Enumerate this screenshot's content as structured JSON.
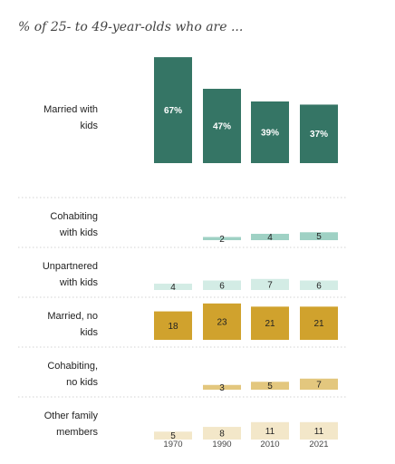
{
  "chart_data": {
    "type": "bar",
    "title": "% of 25- to 49-year-olds who are ...",
    "categories": [
      "1970",
      "1990",
      "2010",
      "2021"
    ],
    "series": [
      {
        "name": [
          "Married with",
          "kids"
        ],
        "values": [
          67,
          47,
          39,
          37
        ],
        "labels": [
          "67%",
          "47%",
          "39%",
          "37%"
        ],
        "color": "#357565",
        "text_color": "#ffffff"
      },
      {
        "name": [
          "Cohabiting",
          "with kids"
        ],
        "values": [
          null,
          2,
          4,
          5
        ],
        "labels": [
          "",
          "2",
          "4",
          "5"
        ],
        "color": "#9fd1c4",
        "text_color": "#222222"
      },
      {
        "name": [
          "Unpartnered",
          "with kids"
        ],
        "values": [
          4,
          6,
          7,
          6
        ],
        "labels": [
          "4",
          "6",
          "7",
          "6"
        ],
        "color": "#d3ece5",
        "text_color": "#222222"
      },
      {
        "name": [
          "Married, no",
          "kids"
        ],
        "values": [
          18,
          23,
          21,
          21
        ],
        "labels": [
          "18",
          "23",
          "21",
          "21"
        ],
        "color": "#d0a22d",
        "text_color": "#222222"
      },
      {
        "name": [
          "Cohabiting,",
          "no kids"
        ],
        "values": [
          null,
          3,
          5,
          7
        ],
        "labels": [
          "",
          "3",
          "5",
          "7"
        ],
        "color": "#e3c77e",
        "text_color": "#222222"
      },
      {
        "name": [
          "Other family",
          "members"
        ],
        "values": [
          5,
          8,
          11,
          11
        ],
        "labels": [
          "5",
          "8",
          "11",
          "11"
        ],
        "color": "#f3e7c9",
        "text_color": "#222222"
      }
    ],
    "xlabel": "",
    "ylabel": "",
    "grid": false,
    "legend": "none"
  }
}
